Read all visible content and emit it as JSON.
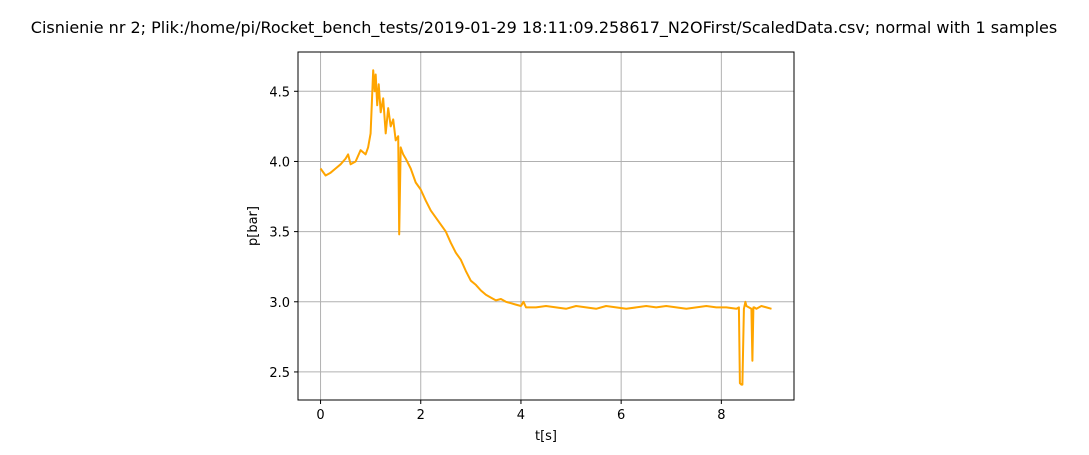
{
  "chart_data": {
    "type": "line",
    "title": "Cisnienie nr 2; Plik:/home/pi/Rocket_bench_tests/2019-01-29 18:11:09.258617_N2OFirst/ScaledData.csv; normal with 1 samples",
    "xlabel": "t[s]",
    "ylabel": "p[bar]",
    "xlim": [
      -0.45,
      9.45
    ],
    "ylim": [
      2.3,
      4.78
    ],
    "xticks": [
      0,
      2,
      4,
      6,
      8
    ],
    "xtick_labels": [
      "0",
      "2",
      "4",
      "6",
      "8"
    ],
    "yticks": [
      2.5,
      3.0,
      3.5,
      4.0,
      4.5
    ],
    "ytick_labels": [
      "2.5",
      "3.0",
      "3.5",
      "4.0",
      "4.5"
    ],
    "grid": true,
    "colors": {
      "line": "#ffa500",
      "grid": "#b0b0b0",
      "axes": "#000000"
    },
    "series": [
      {
        "x": [
          0.0,
          0.1,
          0.2,
          0.3,
          0.4,
          0.5,
          0.55,
          0.6,
          0.7,
          0.8,
          0.9,
          0.95,
          1.0,
          1.05,
          1.08,
          1.1,
          1.13,
          1.16,
          1.2,
          1.25,
          1.3,
          1.35,
          1.4,
          1.45,
          1.5,
          1.55,
          1.57,
          1.6,
          1.65,
          1.7,
          1.8,
          1.9,
          2.0,
          2.1,
          2.2,
          2.3,
          2.4,
          2.5,
          2.6,
          2.7,
          2.8,
          2.9,
          3.0,
          3.1,
          3.2,
          3.3,
          3.4,
          3.5,
          3.6,
          3.7,
          3.8,
          3.9,
          4.0,
          4.05,
          4.1,
          4.3,
          4.5,
          4.7,
          4.9,
          5.1,
          5.3,
          5.5,
          5.7,
          5.9,
          6.1,
          6.3,
          6.5,
          6.7,
          6.9,
          7.1,
          7.3,
          7.5,
          7.7,
          7.9,
          8.1,
          8.3,
          8.35,
          8.37,
          8.4,
          8.42,
          8.45,
          8.48,
          8.5,
          8.55,
          8.6,
          8.62,
          8.64,
          8.66,
          8.7,
          8.8,
          8.9,
          9.0
        ],
        "y": [
          3.95,
          3.9,
          3.92,
          3.95,
          3.98,
          4.02,
          4.05,
          3.98,
          4.0,
          4.08,
          4.05,
          4.1,
          4.2,
          4.65,
          4.5,
          4.62,
          4.4,
          4.55,
          4.35,
          4.45,
          4.2,
          4.38,
          4.25,
          4.3,
          4.15,
          4.18,
          3.48,
          4.1,
          4.05,
          4.02,
          3.95,
          3.85,
          3.8,
          3.72,
          3.65,
          3.6,
          3.55,
          3.5,
          3.42,
          3.35,
          3.3,
          3.22,
          3.15,
          3.12,
          3.08,
          3.05,
          3.03,
          3.01,
          3.02,
          3.0,
          2.99,
          2.98,
          2.97,
          3.0,
          2.96,
          2.96,
          2.97,
          2.96,
          2.95,
          2.97,
          2.96,
          2.95,
          2.97,
          2.96,
          2.95,
          2.96,
          2.97,
          2.96,
          2.97,
          2.96,
          2.95,
          2.96,
          2.97,
          2.96,
          2.96,
          2.95,
          2.96,
          2.42,
          2.41,
          2.41,
          2.95,
          3.0,
          2.97,
          2.96,
          2.95,
          2.58,
          2.96,
          2.96,
          2.95,
          2.97,
          2.96,
          2.95
        ]
      }
    ]
  }
}
